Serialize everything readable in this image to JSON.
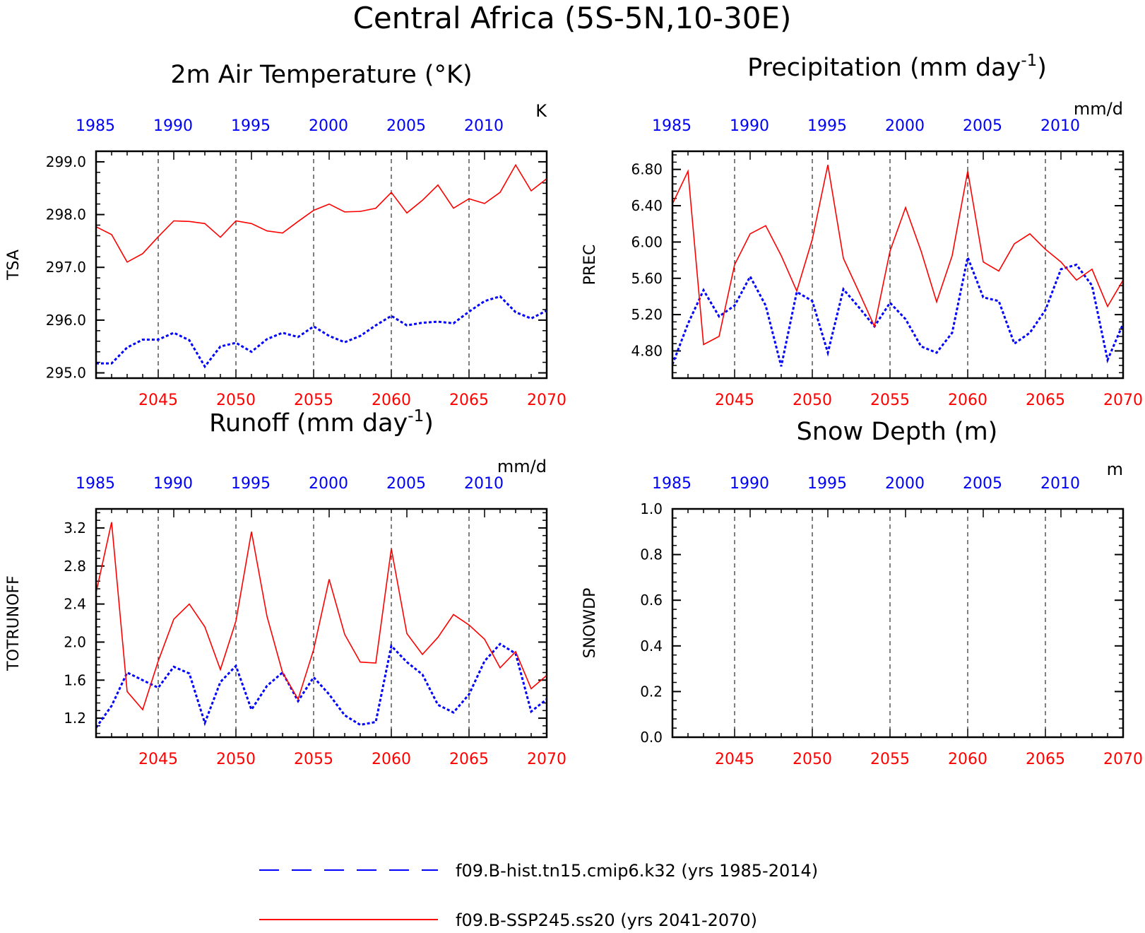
{
  "figure": {
    "title": "Central Africa (5S-5N,10-30E)",
    "colors": {
      "hist": "#0000ff",
      "ssp": "#ff0000",
      "axis": "#000000",
      "grid": "#000000"
    }
  },
  "legend": [
    {
      "label": "f09.B-hist.tn15.cmip6.k32 (yrs 1985-2014)",
      "style": "dashed",
      "color": "#0000ff"
    },
    {
      "label": "f09.B-SSP245.ss20 (yrs 2041-2070)",
      "style": "solid",
      "color": "#ff0000"
    }
  ],
  "chart_data": [
    {
      "type": "line",
      "title": "2m Air Temperature (°K)",
      "ylabel": "TSA",
      "units": "K",
      "ylim": [
        294.9,
        299.2
      ],
      "yticks": [
        295.0,
        296.0,
        297.0,
        298.0,
        299.0
      ],
      "yticks_labels": [
        "295.0",
        "296.0",
        "297.0",
        "298.0",
        "299.0"
      ],
      "top_x": [
        1985,
        1990,
        1995,
        2000,
        2005,
        2010
      ],
      "bottom_x": [
        2045,
        2050,
        2055,
        2060,
        2065,
        2070
      ],
      "grid": "dashed vertical at bottom-axis ticks",
      "series": [
        {
          "name": "f09.B-hist.tn15.cmip6.k32",
          "period": "1985-2014",
          "style": "dashed",
          "values": [
            295.18,
            295.18,
            295.48,
            295.63,
            295.63,
            295.76,
            295.62,
            295.12,
            295.5,
            295.57,
            295.4,
            295.64,
            295.76,
            295.68,
            295.88,
            295.7,
            295.58,
            295.7,
            295.9,
            296.08,
            295.9,
            295.95,
            295.97,
            295.94,
            296.16,
            296.36,
            296.45,
            296.15,
            296.03,
            296.18
          ]
        },
        {
          "name": "f09.B-SSP245.ss20",
          "period": "2041-2070",
          "style": "solid",
          "values": [
            297.77,
            297.62,
            297.1,
            297.26,
            297.58,
            297.88,
            297.87,
            297.83,
            297.57,
            297.88,
            297.83,
            297.69,
            297.65,
            297.87,
            298.08,
            298.2,
            298.05,
            298.06,
            298.12,
            298.42,
            298.03,
            298.27,
            298.56,
            298.12,
            298.3,
            298.21,
            298.42,
            298.94,
            298.45,
            298.68
          ]
        }
      ]
    },
    {
      "type": "line",
      "title": "Precipitation (mm day",
      "title_sup": "-1",
      "title_close": ")",
      "ylabel": "PREC",
      "units": "mm/d",
      "ylim": [
        4.5,
        7.0
      ],
      "yticks": [
        4.8,
        5.2,
        5.6,
        6.0,
        6.4,
        6.8
      ],
      "yticks_labels": [
        "4.80",
        "5.20",
        "5.60",
        "6.00",
        "6.40",
        "6.80"
      ],
      "top_x": [
        1985,
        1990,
        1995,
        2000,
        2005,
        2010
      ],
      "bottom_x": [
        2045,
        2050,
        2055,
        2060,
        2065,
        2070
      ],
      "grid": "dashed vertical at bottom-axis ticks",
      "series": [
        {
          "name": "f09.B-hist.tn15.cmip6.k32",
          "period": "1985-2014",
          "style": "dashed",
          "values": [
            4.65,
            5.1,
            5.47,
            5.18,
            5.3,
            5.62,
            5.3,
            4.63,
            5.45,
            5.35,
            4.78,
            5.48,
            5.28,
            5.07,
            5.33,
            5.15,
            4.85,
            4.78,
            5.0,
            5.83,
            5.39,
            5.35,
            4.88,
            5.0,
            5.25,
            5.7,
            5.75,
            5.52,
            4.7,
            5.1
          ]
        },
        {
          "name": "f09.B-SSP245.ss20",
          "period": "2041-2070",
          "style": "solid",
          "values": [
            6.42,
            6.78,
            4.87,
            4.96,
            5.75,
            6.09,
            6.18,
            5.85,
            5.46,
            6.03,
            6.85,
            5.82,
            5.45,
            5.07,
            5.9,
            6.38,
            5.9,
            5.34,
            5.85,
            6.78,
            5.78,
            5.68,
            5.98,
            6.09,
            5.92,
            5.78,
            5.58,
            5.7,
            5.29,
            5.58
          ]
        }
      ]
    },
    {
      "type": "line",
      "title": "Runoff (mm day",
      "title_sup": "-1",
      "title_close": ")",
      "ylabel": "TOTRUNOFF",
      "units": "mm/d",
      "ylim": [
        1.0,
        3.4
      ],
      "yticks": [
        1.2,
        1.6,
        2.0,
        2.4,
        2.8,
        3.2
      ],
      "yticks_labels": [
        "1.2",
        "1.6",
        "2.0",
        "2.4",
        "2.8",
        "3.2"
      ],
      "top_x": [
        1985,
        1990,
        1995,
        2000,
        2005,
        2010
      ],
      "bottom_x": [
        2045,
        2050,
        2055,
        2060,
        2065,
        2070
      ],
      "grid": "dashed vertical at bottom-axis ticks",
      "series": [
        {
          "name": "f09.B-hist.tn15.cmip6.k32",
          "period": "1985-2014",
          "style": "dashed",
          "values": [
            1.1,
            1.33,
            1.68,
            1.6,
            1.52,
            1.74,
            1.67,
            1.15,
            1.58,
            1.75,
            1.29,
            1.54,
            1.68,
            1.38,
            1.63,
            1.45,
            1.23,
            1.13,
            1.16,
            1.96,
            1.79,
            1.66,
            1.34,
            1.26,
            1.45,
            1.8,
            1.98,
            1.88,
            1.27,
            1.4
          ]
        },
        {
          "name": "f09.B-SSP245.ss20",
          "period": "2041-2070",
          "style": "solid",
          "values": [
            2.52,
            3.26,
            1.48,
            1.29,
            1.8,
            2.24,
            2.4,
            2.16,
            1.71,
            2.22,
            3.16,
            2.27,
            1.68,
            1.4,
            1.92,
            2.66,
            2.08,
            1.79,
            1.78,
            2.98,
            2.09,
            1.87,
            2.05,
            2.29,
            2.18,
            2.03,
            1.73,
            1.9,
            1.51,
            1.65
          ]
        }
      ]
    },
    {
      "type": "line",
      "title": "Snow Depth (m)",
      "ylabel": "SNOWDP",
      "units": "m",
      "ylim": [
        0.0,
        1.0
      ],
      "yticks": [
        0.0,
        0.2,
        0.4,
        0.6,
        0.8,
        1.0
      ],
      "yticks_labels": [
        "0.0",
        "0.2",
        "0.4",
        "0.6",
        "0.8",
        "1.0"
      ],
      "top_x": [
        1985,
        1990,
        1995,
        2000,
        2005,
        2010
      ],
      "bottom_x": [
        2045,
        2050,
        2055,
        2060,
        2065,
        2070
      ],
      "grid": "dashed vertical at bottom-axis ticks",
      "series": []
    }
  ]
}
